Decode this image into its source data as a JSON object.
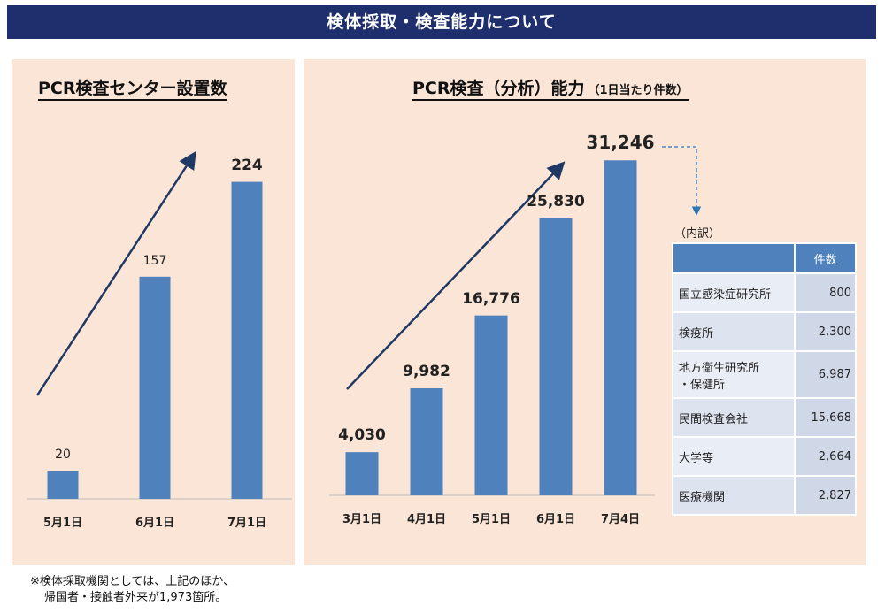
{
  "banner": {
    "title": "検体採取・検査能力について"
  },
  "breakdown": {
    "label": "（内訳）",
    "header": "件数",
    "rows": [
      {
        "name": "国立感染症研究所",
        "value": "800"
      },
      {
        "name": "検疫所",
        "value": "2,300"
      },
      {
        "name": "地方衛生研究所・保健所",
        "name_line1": "地方衛生研究所",
        "name_line2": "・保健所",
        "value": "6,987"
      },
      {
        "name": "民間検査会社",
        "value": "15,668"
      },
      {
        "name": "大学等",
        "value": "2,664"
      },
      {
        "name": "医療機関",
        "value": "2,827"
      }
    ]
  },
  "footnote": {
    "line1": "※検体採取機関としては、上記のほか、",
    "line2": "帰国者・接触者外来が1,973箇所。"
  },
  "colors": {
    "bar": "#4f81bd",
    "arrow": "#1f3864",
    "banner": "#1f2f6e",
    "panel": "#fbe5d6"
  },
  "chart_data": [
    {
      "type": "bar",
      "title": "PCR検査センター設置数",
      "categories": [
        "5月1日",
        "6月1日",
        "7月1日"
      ],
      "values": [
        20,
        157,
        224
      ],
      "value_labels": [
        "20",
        "157",
        "224"
      ],
      "xlabel": "",
      "ylabel": "",
      "ylim": [
        0,
        240
      ],
      "grid": false,
      "trend_arrow": true
    },
    {
      "type": "bar",
      "title": "PCR検査（分析）能力",
      "subtitle": "（1日当たり件数）",
      "categories": [
        "3月1日",
        "4月1日",
        "5月1日",
        "6月1日",
        "7月4日"
      ],
      "values": [
        4030,
        9982,
        16776,
        25830,
        31246
      ],
      "value_labels": [
        "4,030",
        "9,982",
        "16,776",
        "25,830",
        "31,246"
      ],
      "xlabel": "",
      "ylabel": "",
      "ylim": [
        0,
        33000
      ],
      "grid": false,
      "trend_arrow": true
    }
  ]
}
